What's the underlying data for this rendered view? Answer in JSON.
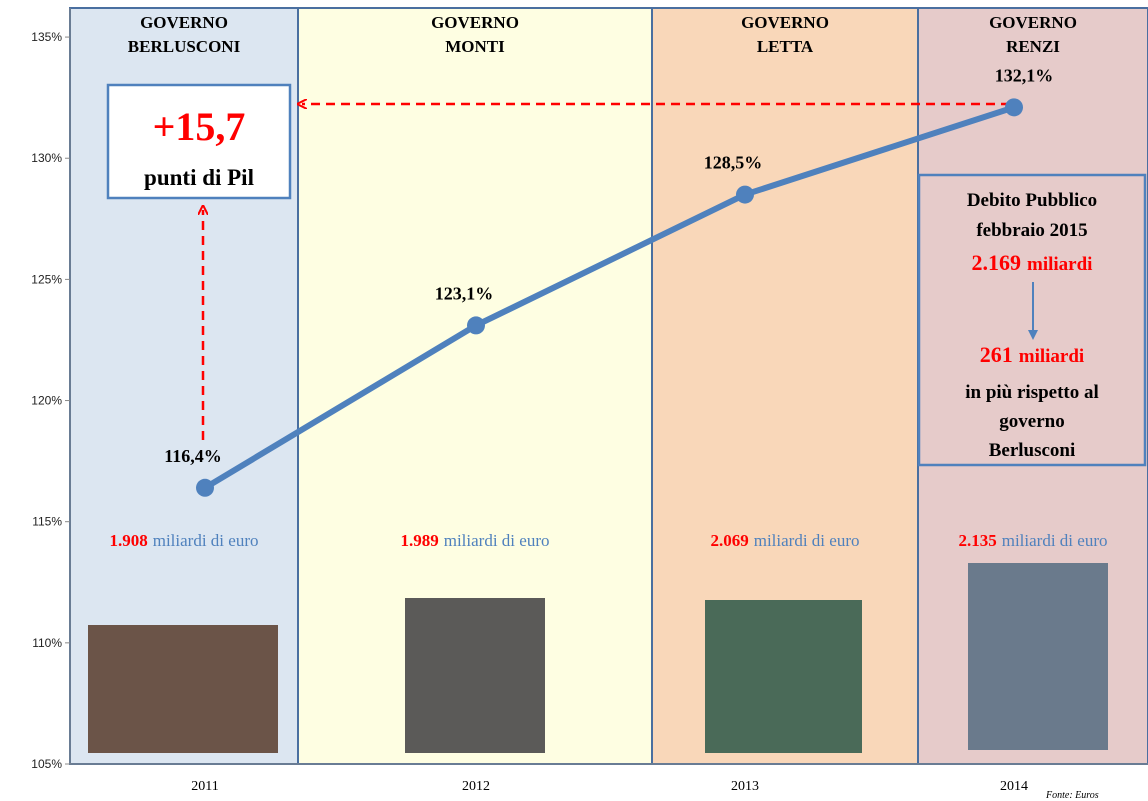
{
  "chart_data": {
    "type": "line",
    "categories": [
      "2011",
      "2012",
      "2013",
      "2014"
    ],
    "values": [
      116.4,
      123.1,
      128.5,
      132.1
    ],
    "value_labels": [
      "116,4%",
      "123,1%",
      "128,5%",
      "132,1%"
    ],
    "color": "#4f81bd",
    "ylim": [
      105,
      136.2
    ],
    "yticks": [
      {
        "value": 105,
        "label": "105%"
      },
      {
        "value": 110,
        "label": "110%"
      },
      {
        "value": 115,
        "label": "115%"
      },
      {
        "value": 120,
        "label": "120%"
      },
      {
        "value": 125,
        "label": "125%"
      },
      {
        "value": 130,
        "label": "130%"
      },
      {
        "value": 135,
        "label": "135%"
      }
    ],
    "governments": [
      {
        "title": [
          "GOVERNO",
          "BERLUSCONI"
        ],
        "debt": "1.908",
        "debt_unit": "miliardi  di euro",
        "color": "#dce6f1"
      },
      {
        "title": [
          "GOVERNO",
          "MONTI"
        ],
        "debt": "1.989",
        "debt_unit": "miliardi  di euro",
        "color": "#fefee2"
      },
      {
        "title": [
          "GOVERNO",
          "LETTA"
        ],
        "debt": "2.069",
        "debt_unit": "miliardi  di euro",
        "color": "#f9d7b9"
      },
      {
        "title": [
          "GOVERNO",
          "RENZI"
        ],
        "debt": "2.135",
        "debt_unit": "miliardi  di euro",
        "color": "#e6cbca"
      }
    ],
    "increase": {
      "value": "+15,7",
      "text": "punti di Pil"
    },
    "debt_box": {
      "lines": [
        "Debito Pubblico",
        "febbraio 2015"
      ],
      "current": {
        "amount": "2.169",
        "unit": "miliardi"
      },
      "difference": {
        "amount": "261",
        "unit": "miliardi"
      },
      "rest": [
        "in più rispetto al",
        "governo",
        "Berlusconi"
      ]
    },
    "source": "Fonte: Euros"
  }
}
